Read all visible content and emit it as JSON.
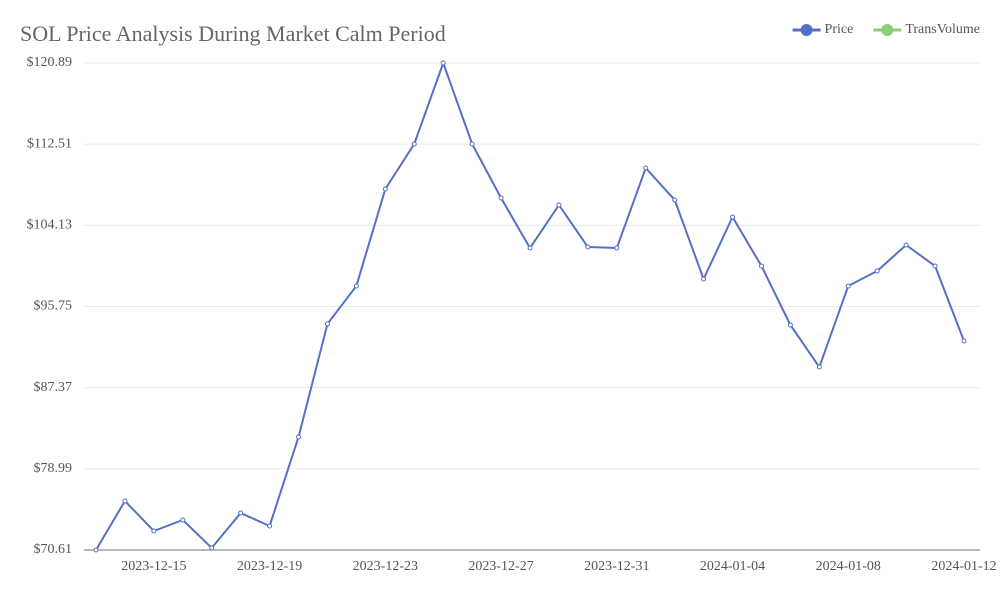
{
  "chart_data": {
    "type": "line",
    "title": "SOL Price Analysis During Market Calm Period",
    "x": [
      "2023-12-13",
      "2023-12-14",
      "2023-12-15",
      "2023-12-16",
      "2023-12-17",
      "2023-12-18",
      "2023-12-19",
      "2023-12-20",
      "2023-12-21",
      "2023-12-22",
      "2023-12-23",
      "2023-12-24",
      "2023-12-25",
      "2023-12-26",
      "2023-12-27",
      "2023-12-28",
      "2023-12-29",
      "2023-12-30",
      "2023-12-31",
      "2024-01-01",
      "2024-01-02",
      "2024-01-03",
      "2024-01-04",
      "2024-01-05",
      "2024-01-06",
      "2024-01-07",
      "2024-01-08",
      "2024-01-09",
      "2024-01-10",
      "2024-01-11",
      "2024-01-12"
    ],
    "xticks": [
      "2023-12-15",
      "2023-12-19",
      "2023-12-23",
      "2023-12-27",
      "2023-12-31",
      "2024-01-04",
      "2024-01-08",
      "2024-01-12"
    ],
    "series": [
      {
        "name": "Price",
        "color": "#5470c6",
        "values": [
          70.61,
          75.67,
          72.57,
          73.71,
          70.82,
          74.43,
          73.09,
          82.28,
          93.95,
          97.87,
          107.88,
          112.53,
          120.89,
          112.53,
          106.95,
          101.79,
          106.23,
          101.89,
          101.79,
          110.05,
          106.75,
          98.59,
          104.99,
          99.93,
          93.84,
          89.5,
          97.87,
          99.42,
          102.1,
          99.93,
          92.19
        ]
      },
      {
        "name": "TransVolume",
        "color": "#91cc75",
        "values": [
          null,
          null,
          null,
          null,
          null,
          null,
          null,
          null,
          null,
          null,
          null,
          null,
          null,
          null,
          null,
          null,
          null,
          null,
          null,
          null,
          null,
          null,
          null,
          null,
          null,
          null,
          null,
          null,
          null,
          null,
          null
        ]
      }
    ],
    "ylim": [
      70.61,
      120.89
    ],
    "yticks": [
      {
        "value": 70.61,
        "label": "$70.61"
      },
      {
        "value": 78.99,
        "label": "$78.99"
      },
      {
        "value": 87.37,
        "label": "$87.37"
      },
      {
        "value": 95.75,
        "label": "$95.75"
      },
      {
        "value": 104.13,
        "label": "$104.13"
      },
      {
        "value": 112.51,
        "label": "$112.51"
      },
      {
        "value": 120.89,
        "label": "$120.89"
      }
    ],
    "grid": true,
    "legend": "top-right"
  }
}
